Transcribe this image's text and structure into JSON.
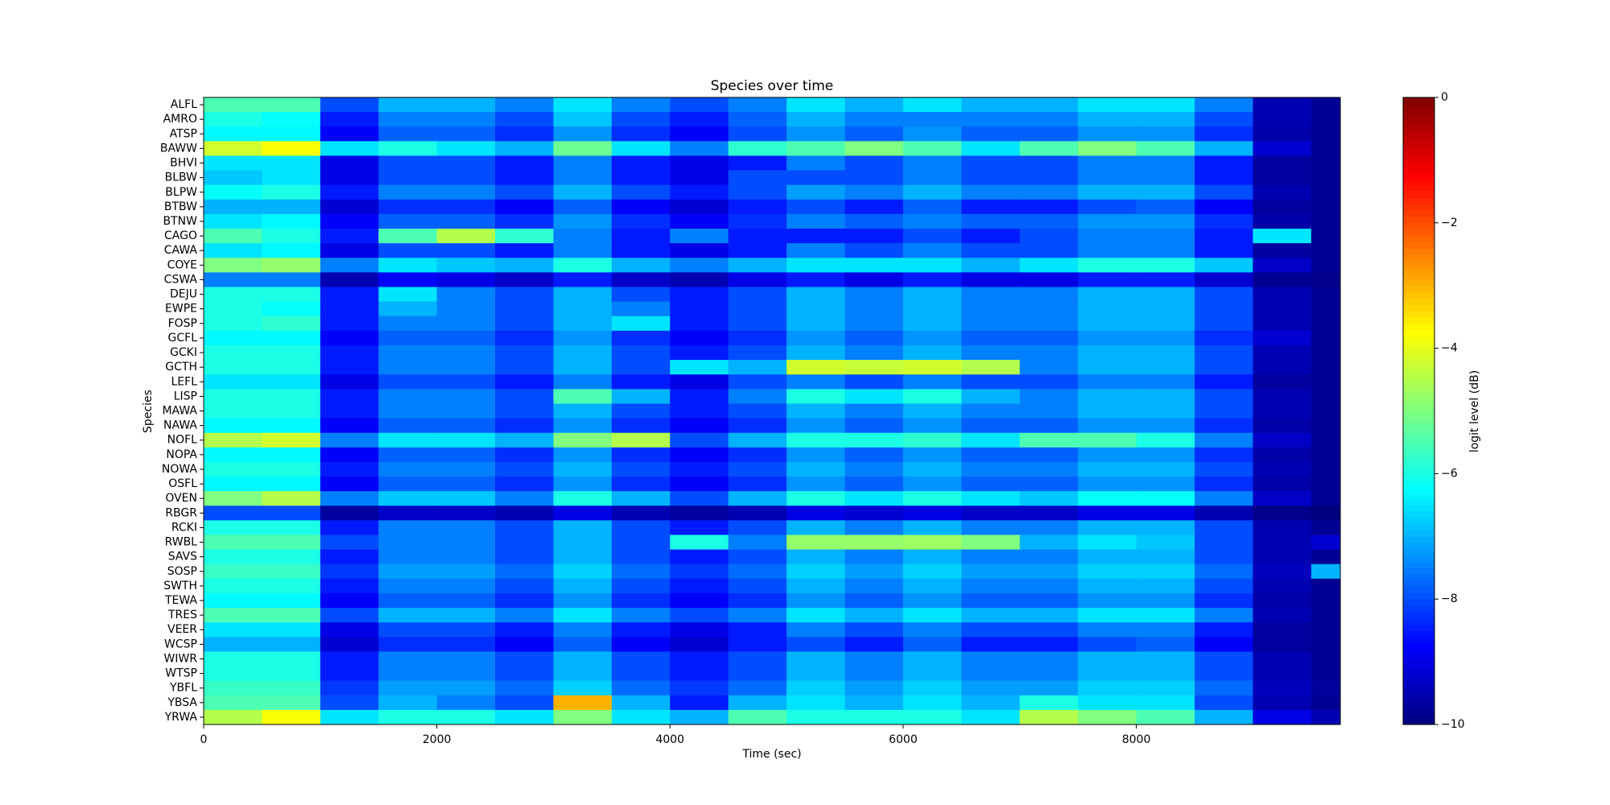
{
  "chart_data": {
    "type": "heatmap",
    "title": "Species over time",
    "x_label": "Time (sec)",
    "y_label": "Species",
    "colorbar_label": "logit level (dB)",
    "colormap": "jet",
    "x": [
      0,
      500,
      1000,
      1500,
      2000,
      2500,
      3000,
      3500,
      4000,
      4500,
      5000,
      5500,
      6000,
      6500,
      7000,
      7500,
      8000,
      8500,
      9000,
      9500,
      9750
    ],
    "xlim": [
      0,
      9750
    ],
    "xticks": [
      0,
      2000,
      4000,
      6000,
      8000
    ],
    "clim": [
      -10,
      0
    ],
    "cticks": [
      {
        "value": 0,
        "label": "0"
      },
      {
        "value": -2,
        "label": "−2"
      },
      {
        "value": -4,
        "label": "−4"
      },
      {
        "value": -6,
        "label": "−6"
      },
      {
        "value": -8,
        "label": "−8"
      },
      {
        "value": -10,
        "label": "−10"
      }
    ],
    "categories": [
      "ALFL",
      "AMRO",
      "ATSP",
      "BAWW",
      "BHVI",
      "BLBW",
      "BLPW",
      "BTBW",
      "BTNW",
      "CAGO",
      "CAWA",
      "COYE",
      "CSWA",
      "DEJU",
      "EWPE",
      "FOSP",
      "GCFL",
      "GCKI",
      "GCTH",
      "LEFL",
      "LISP",
      "MAWA",
      "NAWA",
      "NOFL",
      "NOPA",
      "NOWA",
      "OSFL",
      "OVEN",
      "RBGR",
      "RCKI",
      "RWBL",
      "SAVS",
      "SOSP",
      "SWTH",
      "TEWA",
      "TRES",
      "VEER",
      "WCSP",
      "WIWR",
      "WTSP",
      "YBFL",
      "YBSA",
      "YRWA"
    ],
    "values": [
      [
        -5.5,
        -5.5,
        -8,
        -7,
        -7,
        -7.5,
        -6.5,
        -7.5,
        -8,
        -7.5,
        -6.5,
        -7,
        -6.5,
        -7,
        -7,
        -6.5,
        -6.5,
        -7.5,
        -9.5,
        -9.8
      ],
      [
        -6,
        -6.2,
        -8.5,
        -7.5,
        -7.5,
        -8,
        -6.8,
        -8,
        -8.5,
        -7.8,
        -7,
        -7.5,
        -7.5,
        -7.5,
        -7.5,
        -7,
        -7,
        -8,
        -9.5,
        -9.8
      ],
      [
        -6.3,
        -6.3,
        -8.8,
        -7.8,
        -7.8,
        -8.3,
        -7.3,
        -8.3,
        -8.8,
        -8,
        -7.3,
        -7.8,
        -7.3,
        -7.8,
        -7.8,
        -7.3,
        -7.3,
        -8.3,
        -9.6,
        -9.8
      ],
      [
        -4.2,
        -3.8,
        -6.5,
        -6,
        -6.5,
        -7,
        -5.2,
        -6.5,
        -7.5,
        -5.8,
        -5.5,
        -5,
        -5.5,
        -6.5,
        -5.5,
        -5,
        -5.5,
        -7,
        -9.2,
        -9.8
      ],
      [
        -6.5,
        -6.5,
        -9,
        -8,
        -8,
        -8.5,
        -7.5,
        -8.5,
        -9,
        -8.5,
        -7.5,
        -8,
        -7.5,
        -8,
        -8,
        -7.5,
        -7.5,
        -8.5,
        -9.7,
        -9.8
      ],
      [
        -6.8,
        -6.5,
        -9,
        -8,
        -8,
        -8.5,
        -7.5,
        -8.5,
        -9,
        -8,
        -8,
        -8,
        -7.5,
        -8,
        -8,
        -7.5,
        -7.5,
        -8.5,
        -9.7,
        -9.8
      ],
      [
        -6.2,
        -6,
        -8.5,
        -7.5,
        -7.5,
        -8,
        -7,
        -8,
        -8.5,
        -8,
        -7.2,
        -7.5,
        -7,
        -7.5,
        -7.5,
        -7,
        -7,
        -8,
        -9.5,
        -9.8
      ],
      [
        -7,
        -7,
        -9.2,
        -8.3,
        -8.3,
        -8.8,
        -7.8,
        -8.8,
        -9.2,
        -8.5,
        -8,
        -8.5,
        -7.8,
        -8.5,
        -8.5,
        -8,
        -7.8,
        -8.8,
        -9.7,
        -9.8
      ],
      [
        -6.5,
        -6.3,
        -8.8,
        -7.8,
        -7.8,
        -8.3,
        -7.3,
        -8.3,
        -8.8,
        -8.3,
        -7.5,
        -7.8,
        -7.5,
        -7.8,
        -7.8,
        -7.3,
        -7.3,
        -8.3,
        -9.6,
        -9.8
      ],
      [
        -5.5,
        -6,
        -8.5,
        -5.5,
        -4.5,
        -5.8,
        -7.5,
        -8.5,
        -7.5,
        -8.5,
        -8.5,
        -8.5,
        -8,
        -8.5,
        -8,
        -7.5,
        -7.5,
        -8.5,
        -6.5,
        -9.8
      ],
      [
        -6.5,
        -6.3,
        -9,
        -8,
        -8,
        -8.5,
        -7.5,
        -8.5,
        -9,
        -8.5,
        -7.5,
        -8,
        -7.5,
        -8,
        -8,
        -7.5,
        -7.5,
        -8.5,
        -9.7,
        -9.8
      ],
      [
        -5,
        -4.8,
        -7.5,
        -6.5,
        -6.8,
        -7,
        -6,
        -7,
        -7.5,
        -7,
        -6.5,
        -6.5,
        -6.5,
        -7,
        -6.5,
        -6,
        -6,
        -6.8,
        -9.3,
        -9.8
      ],
      [
        -7.5,
        -7.5,
        -9.5,
        -8.8,
        -9,
        -9.3,
        -8.5,
        -9.3,
        -9.5,
        -9,
        -8.5,
        -9,
        -8.5,
        -9,
        -9,
        -8.5,
        -8.5,
        -9.2,
        -9.8,
        -9.9
      ],
      [
        -6,
        -6,
        -8.5,
        -6.5,
        -7.5,
        -8,
        -7,
        -8,
        -8.5,
        -8,
        -7,
        -7.5,
        -7,
        -7.5,
        -7.5,
        -7,
        -7,
        -8,
        -9.5,
        -9.8
      ],
      [
        -6,
        -6.2,
        -8.5,
        -7,
        -7.5,
        -8,
        -7,
        -7.5,
        -8.5,
        -8,
        -7,
        -7.5,
        -7,
        -7.5,
        -7.5,
        -7,
        -7,
        -8,
        -9.5,
        -9.8
      ],
      [
        -6,
        -5.8,
        -8.5,
        -7.5,
        -7.5,
        -8,
        -7,
        -6.5,
        -8.5,
        -8,
        -7,
        -7.5,
        -7,
        -7.5,
        -7.5,
        -7,
        -7,
        -8,
        -9.5,
        -9.8
      ],
      [
        -6.3,
        -6.3,
        -8.8,
        -7.8,
        -7.8,
        -8.3,
        -7.3,
        -8.3,
        -8.8,
        -8.3,
        -7.3,
        -7.8,
        -7.3,
        -7.8,
        -7.8,
        -7.3,
        -7.3,
        -8.3,
        -9.2,
        -9.8
      ],
      [
        -6,
        -6,
        -8.5,
        -7.5,
        -7.5,
        -8,
        -7,
        -8,
        -8.5,
        -8,
        -7,
        -7.5,
        -7,
        -7.5,
        -7.5,
        -7,
        -7,
        -8,
        -9.5,
        -9.8
      ],
      [
        -6,
        -6,
        -8.5,
        -7.5,
        -7.5,
        -8,
        -7,
        -8,
        -6.5,
        -7,
        -4.2,
        -4.3,
        -4.2,
        -4.5,
        -7.5,
        -7,
        -7,
        -8,
        -9.5,
        -9.8
      ],
      [
        -6.5,
        -6.5,
        -9,
        -8,
        -8,
        -8.5,
        -7.5,
        -8.5,
        -9,
        -8,
        -7.5,
        -8,
        -7.5,
        -8,
        -8,
        -7.5,
        -7.5,
        -8.5,
        -9.7,
        -9.8
      ],
      [
        -6,
        -6,
        -8.5,
        -7.5,
        -7.5,
        -8,
        -5.5,
        -7,
        -8.5,
        -7.5,
        -6,
        -6.5,
        -6,
        -7,
        -7.5,
        -7,
        -7,
        -8,
        -9.5,
        -9.8
      ],
      [
        -6,
        -6,
        -8.5,
        -7.5,
        -7.5,
        -8,
        -7,
        -8,
        -8.5,
        -8,
        -7,
        -7.5,
        -7,
        -7.5,
        -7.5,
        -7,
        -7,
        -8,
        -9.5,
        -9.8
      ],
      [
        -6.3,
        -6.3,
        -8.8,
        -7.8,
        -7.8,
        -8.3,
        -7.3,
        -8.3,
        -8.8,
        -8.3,
        -7.3,
        -7.8,
        -7.3,
        -7.8,
        -7.8,
        -7.3,
        -7.3,
        -8.3,
        -9.6,
        -9.8
      ],
      [
        -4.5,
        -4.2,
        -7.5,
        -6.5,
        -6.5,
        -7,
        -5,
        -4.5,
        -8,
        -7,
        -6,
        -6,
        -5.8,
        -6.5,
        -5.5,
        -5.5,
        -6,
        -7.5,
        -9.3,
        -9.8
      ],
      [
        -6.3,
        -6.3,
        -8.8,
        -7.8,
        -7.8,
        -8.3,
        -7.3,
        -8.3,
        -8.8,
        -8.3,
        -7.3,
        -7.8,
        -7.3,
        -7.8,
        -7.8,
        -7.3,
        -7.3,
        -8.3,
        -9.6,
        -9.8
      ],
      [
        -6,
        -6,
        -8.5,
        -7.5,
        -7.5,
        -8,
        -7,
        -8,
        -8.5,
        -8,
        -7,
        -7.5,
        -7,
        -7.5,
        -7.5,
        -7,
        -7,
        -8,
        -9.5,
        -9.8
      ],
      [
        -6.3,
        -6.3,
        -8.8,
        -7.8,
        -7.8,
        -8.3,
        -7.3,
        -8.3,
        -8.8,
        -8.3,
        -7.3,
        -7.8,
        -7.3,
        -7.8,
        -7.8,
        -7.3,
        -7.3,
        -8.3,
        -9.6,
        -9.8
      ],
      [
        -5,
        -4.5,
        -7.5,
        -6.8,
        -6.8,
        -7.5,
        -6,
        -7,
        -8,
        -7,
        -6,
        -6.5,
        -6,
        -6.5,
        -6.8,
        -6.2,
        -6.2,
        -7.5,
        -9.3,
        -9.8
      ],
      [
        -8,
        -8,
        -9.7,
        -9.3,
        -9.3,
        -9.5,
        -9,
        -9.5,
        -9.7,
        -9.5,
        -9,
        -9.2,
        -9,
        -9.3,
        -9.3,
        -9,
        -9,
        -9.5,
        -9.9,
        -10
      ],
      [
        -6,
        -6,
        -8.5,
        -7.5,
        -7.5,
        -8,
        -7,
        -8,
        -8.5,
        -8,
        -7,
        -7.5,
        -7,
        -7.5,
        -7.5,
        -7,
        -7,
        -8,
        -9.5,
        -9.8
      ],
      [
        -5.5,
        -5.5,
        -8,
        -7.5,
        -7.5,
        -8,
        -7,
        -8,
        -6,
        -7.5,
        -4.8,
        -4.8,
        -4.7,
        -5,
        -7,
        -6.5,
        -6.8,
        -8,
        -9.5,
        -9.2
      ],
      [
        -6,
        -6,
        -8.5,
        -7.5,
        -7.5,
        -8,
        -7,
        -8,
        -8.5,
        -8,
        -7,
        -7.5,
        -7,
        -7.5,
        -7.5,
        -7,
        -7,
        -8,
        -9.5,
        -9.8
      ],
      [
        -5.7,
        -5.7,
        -8.2,
        -7.2,
        -7.2,
        -7.7,
        -6.7,
        -7.7,
        -8.2,
        -7.7,
        -6.7,
        -7.2,
        -6.7,
        -7.2,
        -7.2,
        -6.7,
        -6.7,
        -7.7,
        -9.4,
        -7
      ],
      [
        -6,
        -6,
        -8.5,
        -7.5,
        -7.5,
        -8,
        -7,
        -8,
        -8.5,
        -8,
        -7,
        -7.5,
        -7,
        -7.5,
        -7.5,
        -7,
        -7,
        -8,
        -9.5,
        -9.8
      ],
      [
        -6.3,
        -6.3,
        -8.8,
        -7.8,
        -7.8,
        -8.3,
        -7.3,
        -8.3,
        -8.8,
        -8.3,
        -7.3,
        -7.8,
        -7.3,
        -7.8,
        -7.8,
        -7.3,
        -7.3,
        -8.3,
        -9.6,
        -9.8
      ],
      [
        -5.5,
        -5.5,
        -8,
        -7,
        -7,
        -7.5,
        -6.5,
        -7.5,
        -8,
        -7.5,
        -6.5,
        -7,
        -6.5,
        -7,
        -7,
        -6.5,
        -6.5,
        -7.5,
        -9.5,
        -9.8
      ],
      [
        -6.5,
        -6.5,
        -9,
        -8,
        -8,
        -8.5,
        -7.5,
        -8.5,
        -9,
        -8.5,
        -7.5,
        -8,
        -7.5,
        -8,
        -8,
        -7.5,
        -7.5,
        -8.5,
        -9.7,
        -9.8
      ],
      [
        -7,
        -7,
        -9.2,
        -8.3,
        -8.3,
        -8.8,
        -7.8,
        -8.8,
        -9.2,
        -8.5,
        -8,
        -8.5,
        -7.8,
        -8.5,
        -8.5,
        -8,
        -7.8,
        -8.8,
        -9.7,
        -9.8
      ],
      [
        -6,
        -6,
        -8.5,
        -7.5,
        -7.5,
        -8,
        -7,
        -8,
        -8.5,
        -8,
        -7,
        -7.5,
        -7,
        -7.5,
        -7.5,
        -7,
        -7,
        -8,
        -9.5,
        -9.8
      ],
      [
        -6,
        -6,
        -8.5,
        -7.5,
        -7.5,
        -8,
        -7,
        -8,
        -8.5,
        -8,
        -7,
        -7.5,
        -7,
        -7.5,
        -7.5,
        -7,
        -7,
        -8,
        -9.5,
        -9.8
      ],
      [
        -5.7,
        -5.7,
        -8.2,
        -7.2,
        -7.2,
        -7.7,
        -6.7,
        -7.7,
        -8.2,
        -7.7,
        -6.7,
        -7.2,
        -6.7,
        -7.2,
        -7.2,
        -6.7,
        -6.7,
        -7.7,
        -9.4,
        -9.7
      ],
      [
        -5.5,
        -5.5,
        -8,
        -7,
        -7.5,
        -8,
        -3,
        -7,
        -8.5,
        -7,
        -6.5,
        -7,
        -6.5,
        -7,
        -6,
        -6.5,
        -6.5,
        -8,
        -9.5,
        -9.8
      ],
      [
        -4.5,
        -3.8,
        -6.5,
        -6,
        -6,
        -6.5,
        -5,
        -6.5,
        -7,
        -5.5,
        -6,
        -6,
        -6,
        -6.5,
        -4.5,
        -5,
        -5.5,
        -7,
        -9,
        -9.5
      ]
    ]
  }
}
